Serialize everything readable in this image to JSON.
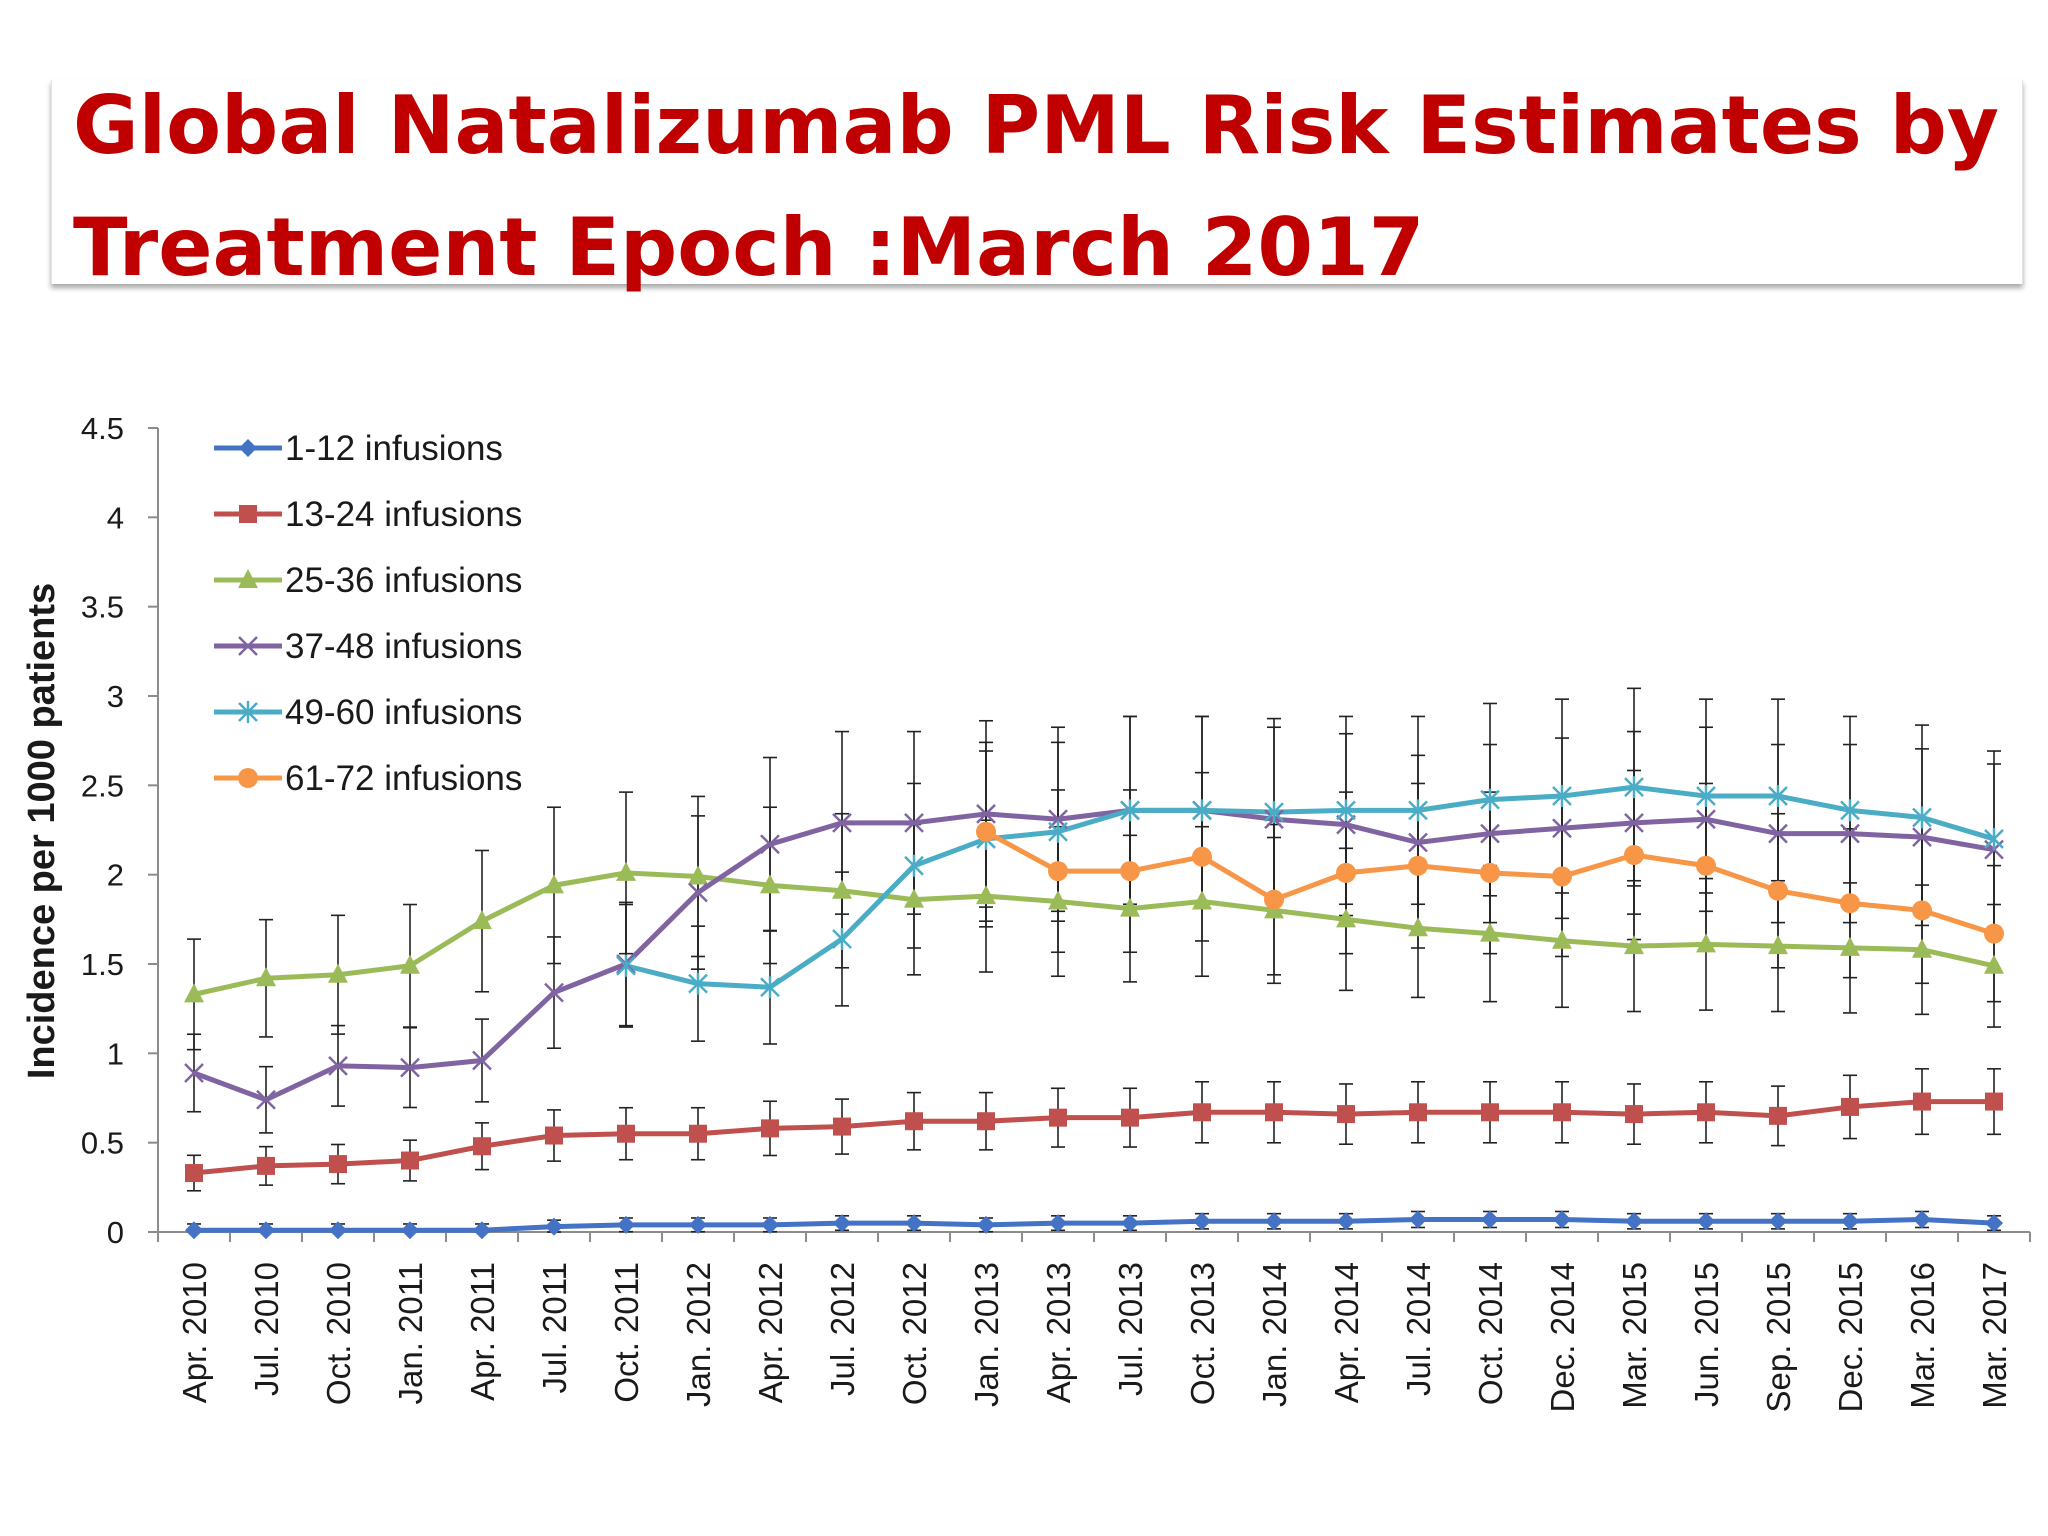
{
  "slide": {
    "title_line1": "Global Natalizumab PML Risk Estimates by",
    "title_line2": "Treatment Epoch :March 2017"
  },
  "chart_data": {
    "type": "line",
    "title": "",
    "xlabel": "",
    "ylabel": "Incidence per 1000 patients",
    "ylim": [
      0,
      4.5
    ],
    "yticks": [
      "0",
      "0.5",
      "1",
      "1.5",
      "2",
      "2.5",
      "3",
      "3.5",
      "4",
      "4.5"
    ],
    "legend_position": "top-left",
    "grid": false,
    "error_bars": true,
    "categories": [
      "Apr. 2010",
      "Jul. 2010",
      "Oct. 2010",
      "Jan. 2011",
      "Apr. 2011",
      "Jul. 2011",
      "Oct. 2011",
      "Jan. 2012",
      "Apr. 2012",
      "Jul. 2012",
      "Oct. 2012",
      "Jan. 2013",
      "Apr. 2013",
      "Jul. 2013",
      "Oct. 2013",
      "Jan. 2014",
      "Apr. 2014",
      "Jul. 2014",
      "Oct. 2014",
      "Dec. 2014",
      "Mar. 2015",
      "Jun. 2015",
      "Sep. 2015",
      "Dec. 2015",
      "Mar. 2016",
      "Mar. 2017"
    ],
    "series": [
      {
        "name": "1-12 infusions",
        "color": "#4472c4",
        "marker": "diamond",
        "values": [
          0.01,
          0.01,
          0.01,
          0.01,
          0.01,
          0.03,
          0.04,
          0.04,
          0.04,
          0.05,
          0.05,
          0.04,
          0.05,
          0.05,
          0.06,
          0.06,
          0.06,
          0.07,
          0.07,
          0.07,
          0.06,
          0.06,
          0.06,
          0.06,
          0.07,
          0.05
        ]
      },
      {
        "name": "13-24 infusions",
        "color": "#c0504d",
        "marker": "square",
        "values": [
          0.33,
          0.37,
          0.38,
          0.4,
          0.48,
          0.54,
          0.55,
          0.55,
          0.58,
          0.59,
          0.62,
          0.62,
          0.64,
          0.64,
          0.67,
          0.67,
          0.66,
          0.67,
          0.67,
          0.67,
          0.66,
          0.67,
          0.65,
          0.7,
          0.73,
          0.73
        ]
      },
      {
        "name": "25-36 infusions",
        "color": "#9bbb59",
        "marker": "triangle",
        "values": [
          1.33,
          1.42,
          1.44,
          1.49,
          1.74,
          1.94,
          2.01,
          1.99,
          1.94,
          1.91,
          1.86,
          1.88,
          1.85,
          1.81,
          1.85,
          1.8,
          1.75,
          1.7,
          1.67,
          1.63,
          1.6,
          1.61,
          1.6,
          1.59,
          1.58,
          1.49
        ]
      },
      {
        "name": "37-48 infusions",
        "color": "#8064a2",
        "marker": "x",
        "values": [
          0.89,
          0.74,
          0.93,
          0.92,
          0.96,
          1.34,
          1.5,
          1.9,
          2.17,
          2.29,
          2.29,
          2.34,
          2.31,
          2.36,
          2.36,
          2.31,
          2.28,
          2.18,
          2.23,
          2.26,
          2.29,
          2.31,
          2.23,
          2.23,
          2.21,
          2.14
        ]
      },
      {
        "name": "49-60 infusions",
        "color": "#4bacc6",
        "marker": "star",
        "values": [
          null,
          null,
          null,
          null,
          null,
          null,
          1.49,
          1.39,
          1.37,
          1.64,
          2.05,
          2.2,
          2.24,
          2.36,
          2.36,
          2.35,
          2.36,
          2.36,
          2.42,
          2.44,
          2.49,
          2.44,
          2.44,
          2.36,
          2.32,
          2.2
        ]
      },
      {
        "name": "61-72 infusions",
        "color": "#f79646",
        "marker": "circle",
        "values": [
          null,
          null,
          null,
          null,
          null,
          null,
          null,
          null,
          null,
          null,
          null,
          2.24,
          2.02,
          2.02,
          2.1,
          1.86,
          2.01,
          2.05,
          2.01,
          1.99,
          2.11,
          2.05,
          1.91,
          1.84,
          1.8,
          1.67
        ]
      }
    ]
  }
}
